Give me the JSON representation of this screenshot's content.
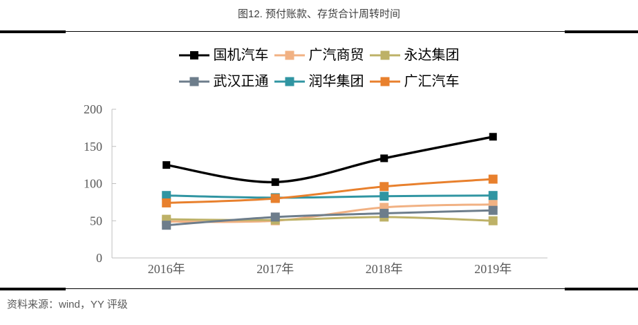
{
  "header": {
    "title": "图12. 预付账款、存货合计周转时间"
  },
  "footer": {
    "source": "资料来源：wind，YY 评级"
  },
  "colors": {
    "axis": "#bfbfbf",
    "axis_text": "#595959",
    "title_text": "#3f3f3f",
    "rule": "#000000"
  },
  "chart_data": {
    "type": "line",
    "title": "图12. 预付账款、存货合计周转时间",
    "categories": [
      "2016年",
      "2017年",
      "2018年",
      "2019年"
    ],
    "series": [
      {
        "name": "国机汽车",
        "color": "#000000",
        "values": [
          125,
          102,
          134,
          163
        ]
      },
      {
        "name": "广汽商贸",
        "color": "#f1b183",
        "values": [
          49,
          50,
          68,
          72
        ]
      },
      {
        "name": "永达集团",
        "color": "#bdb167",
        "values": [
          52,
          51,
          55,
          50
        ]
      },
      {
        "name": "武汉正通",
        "color": "#6d7d8b",
        "values": [
          44,
          55,
          60,
          64
        ]
      },
      {
        "name": "润华集团",
        "color": "#3095a2",
        "values": [
          84,
          81,
          83,
          84
        ]
      },
      {
        "name": "广汇汽车",
        "color": "#e8802d",
        "values": [
          74,
          80,
          96,
          106
        ]
      }
    ],
    "legend_rows": [
      [
        "国机汽车",
        "广汽商贸",
        "永达集团"
      ],
      [
        "武汉正通",
        "润华集团",
        "广汇汽车"
      ]
    ],
    "legend_position": "top",
    "xlabel": "",
    "ylabel": "",
    "ylim": [
      0,
      200
    ],
    "yticks": [
      0,
      50,
      100,
      150,
      200
    ],
    "grid": false,
    "smooth_lines": true,
    "marker": "square"
  }
}
